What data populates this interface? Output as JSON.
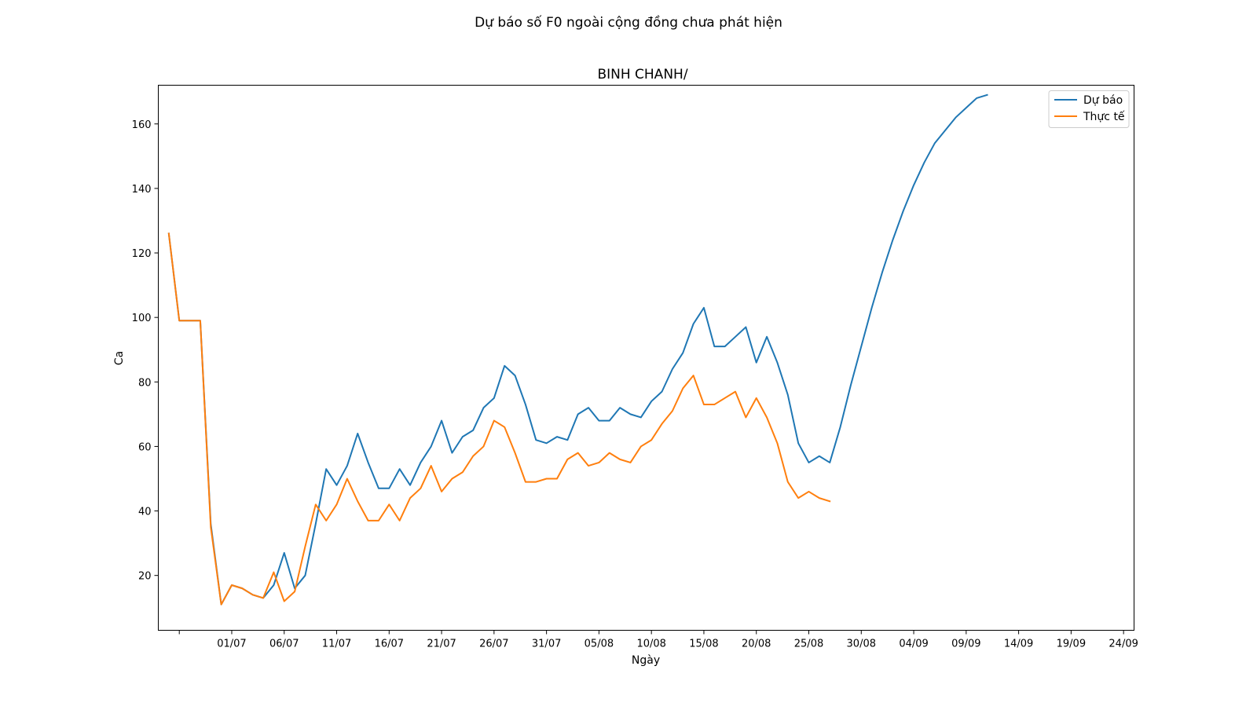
{
  "figure": {
    "suptitle": "Dự báo số F0 ngoài cộng đồng chưa phát hiện"
  },
  "chart_data": {
    "type": "line",
    "title": "BINH CHANH/",
    "xlabel": "Ngày",
    "ylabel": "Ca",
    "x_start": "2021-06-25",
    "xlim": [
      "2021-06-24",
      "2021-09-25"
    ],
    "ylim": [
      3,
      172
    ],
    "x_ticks": [
      {
        "date": "2021-06-26",
        "label": ""
      },
      {
        "date": "2021-07-01",
        "label": "01/07"
      },
      {
        "date": "2021-07-06",
        "label": "06/07"
      },
      {
        "date": "2021-07-11",
        "label": "11/07"
      },
      {
        "date": "2021-07-16",
        "label": "16/07"
      },
      {
        "date": "2021-07-21",
        "label": "21/07"
      },
      {
        "date": "2021-07-26",
        "label": "26/07"
      },
      {
        "date": "2021-07-31",
        "label": "31/07"
      },
      {
        "date": "2021-08-05",
        "label": "05/08"
      },
      {
        "date": "2021-08-10",
        "label": "10/08"
      },
      {
        "date": "2021-08-15",
        "label": "15/08"
      },
      {
        "date": "2021-08-20",
        "label": "20/08"
      },
      {
        "date": "2021-08-25",
        "label": "25/08"
      },
      {
        "date": "2021-08-30",
        "label": "30/08"
      },
      {
        "date": "2021-09-04",
        "label": "04/09"
      },
      {
        "date": "2021-09-09",
        "label": "09/09"
      },
      {
        "date": "2021-09-14",
        "label": "14/09"
      },
      {
        "date": "2021-09-19",
        "label": "19/09"
      },
      {
        "date": "2021-09-24",
        "label": "24/09"
      }
    ],
    "y_ticks": [
      20,
      40,
      60,
      80,
      100,
      120,
      140,
      160
    ],
    "legend_position": "top-right",
    "grid": false,
    "series": [
      {
        "name": "Dự báo",
        "color": "#1f77b4",
        "values": [
          126,
          99,
          99,
          99,
          36,
          11,
          17,
          16,
          14,
          13,
          17,
          27,
          16,
          20,
          36,
          53,
          48,
          54,
          64,
          55,
          47,
          47,
          53,
          48,
          55,
          60,
          68,
          58,
          63,
          65,
          72,
          75,
          85,
          82,
          73,
          62,
          61,
          63,
          62,
          70,
          72,
          68,
          68,
          72,
          70,
          69,
          74,
          77,
          84,
          89,
          98,
          103,
          91,
          91,
          94,
          97,
          86,
          94,
          86,
          76,
          61,
          55,
          57,
          55,
          66,
          79,
          91,
          103,
          114,
          124,
          133,
          141,
          148,
          154,
          158,
          162,
          165,
          168,
          169
        ]
      },
      {
        "name": "Thực tế",
        "color": "#ff7f0e",
        "values": [
          126,
          99,
          99,
          99,
          35,
          11,
          17,
          16,
          14,
          13,
          21,
          12,
          15,
          29,
          42,
          37,
          42,
          50,
          43,
          37,
          37,
          42,
          37,
          44,
          47,
          54,
          46,
          50,
          52,
          57,
          60,
          68,
          66,
          58,
          49,
          49,
          50,
          50,
          56,
          58,
          54,
          55,
          58,
          56,
          55,
          60,
          62,
          67,
          71,
          78,
          82,
          73,
          73,
          75,
          77,
          69,
          75,
          69,
          61,
          49,
          44,
          46,
          44,
          43
        ]
      }
    ]
  }
}
